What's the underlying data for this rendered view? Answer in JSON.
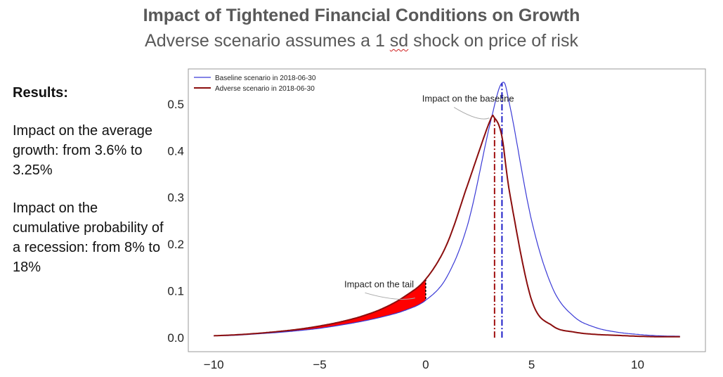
{
  "header": {
    "title": "Impact of Tightened Financial Conditions on Growth",
    "subtitle_pre": "Adverse scenario assumes a 1 ",
    "subtitle_sd": "sd",
    "subtitle_post": " shock on price of risk"
  },
  "sidebar": {
    "results_label": "Results:",
    "paragraph1": "Impact on the average growth: from 3.6% to 3.25%",
    "paragraph2": "Impact on the cumulative probability of a recession: from 8% to 18%"
  },
  "chart_data": {
    "type": "line",
    "xlim": [
      -11.2,
      13.2
    ],
    "ylim": [
      -0.03,
      0.575
    ],
    "xticks": [
      -10,
      -5,
      0,
      5,
      10
    ],
    "xtick_labels": [
      "−10",
      "−5",
      "0",
      "5",
      "10"
    ],
    "yticks": [
      0.0,
      0.1,
      0.2,
      0.3,
      0.4,
      0.5
    ],
    "ytick_labels": [
      "0.0",
      "0.1",
      "0.2",
      "0.3",
      "0.4",
      "0.5"
    ],
    "legend_position": "top-left",
    "series": [
      {
        "name": "Baseline scenario in 2018-06-30",
        "color": "#3a3ad6",
        "x": [
          -10,
          -9,
          -8,
          -7,
          -6,
          -5,
          -4,
          -3,
          -2,
          -1,
          0,
          1,
          2,
          3,
          3.6,
          4,
          5,
          6,
          7,
          8,
          9,
          10,
          11,
          12
        ],
        "y": [
          0.004,
          0.005,
          0.008,
          0.011,
          0.015,
          0.02,
          0.027,
          0.035,
          0.045,
          0.058,
          0.08,
          0.13,
          0.245,
          0.45,
          0.545,
          0.49,
          0.25,
          0.105,
          0.045,
          0.022,
          0.012,
          0.007,
          0.004,
          0.003
        ]
      },
      {
        "name": "Adverse scenario in 2018-06-30",
        "color": "#8b0e0e",
        "x": [
          -10,
          -9,
          -8,
          -7,
          -6,
          -5,
          -4,
          -3,
          -2,
          -1,
          0,
          1,
          2,
          3,
          3.25,
          3.6,
          4,
          5,
          6,
          7,
          8,
          9,
          10,
          11,
          12
        ],
        "y": [
          0.004,
          0.006,
          0.009,
          0.013,
          0.018,
          0.025,
          0.034,
          0.046,
          0.063,
          0.088,
          0.125,
          0.2,
          0.33,
          0.46,
          0.47,
          0.43,
          0.3,
          0.08,
          0.025,
          0.012,
          0.007,
          0.005,
          0.003,
          0.002,
          0.002
        ]
      }
    ],
    "vlines": [
      {
        "x": 3.6,
        "color": "#1f1fc8",
        "style": "dashdot"
      },
      {
        "x": 3.25,
        "color": "#a01010",
        "style": "dashdot"
      }
    ],
    "shaded_region": {
      "x_min": -10,
      "x_max": 0,
      "color": "#ff0000"
    },
    "annotations": [
      {
        "text": "Impact on the baseline",
        "x": 2.0,
        "y": 0.505,
        "target_x": 3.0,
        "target_y": 0.47
      },
      {
        "text": "Impact on the tail",
        "x": -2.2,
        "y": 0.108,
        "target_x": -0.5,
        "target_y": 0.085
      }
    ]
  }
}
